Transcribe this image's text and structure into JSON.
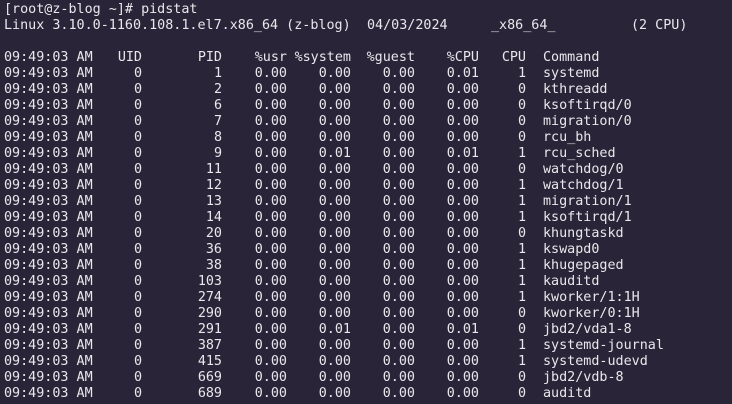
{
  "terminal": {
    "prompt": "[root@z-blog ~]# ",
    "command": "pidstat",
    "sysinfo": {
      "kernel": "Linux 3.10.0-1160.108.1.el7.x86_64 (z-blog)",
      "date": "04/03/2024",
      "arch": "_x86_64_",
      "cpus": "(2 CPU)"
    },
    "headers": [
      "09:49:03 AM",
      "UID",
      "PID",
      "%usr",
      "%system",
      "%guest",
      "%CPU",
      "CPU",
      "Command"
    ],
    "rows": [
      [
        "09:49:03 AM",
        "0",
        "1",
        "0.00",
        "0.00",
        "0.00",
        "0.01",
        "1",
        "systemd"
      ],
      [
        "09:49:03 AM",
        "0",
        "2",
        "0.00",
        "0.00",
        "0.00",
        "0.00",
        "0",
        "kthreadd"
      ],
      [
        "09:49:03 AM",
        "0",
        "6",
        "0.00",
        "0.00",
        "0.00",
        "0.00",
        "0",
        "ksoftirqd/0"
      ],
      [
        "09:49:03 AM",
        "0",
        "7",
        "0.00",
        "0.00",
        "0.00",
        "0.00",
        "0",
        "migration/0"
      ],
      [
        "09:49:03 AM",
        "0",
        "8",
        "0.00",
        "0.00",
        "0.00",
        "0.00",
        "0",
        "rcu_bh"
      ],
      [
        "09:49:03 AM",
        "0",
        "9",
        "0.00",
        "0.01",
        "0.00",
        "0.01",
        "1",
        "rcu_sched"
      ],
      [
        "09:49:03 AM",
        "0",
        "11",
        "0.00",
        "0.00",
        "0.00",
        "0.00",
        "0",
        "watchdog/0"
      ],
      [
        "09:49:03 AM",
        "0",
        "12",
        "0.00",
        "0.00",
        "0.00",
        "0.00",
        "1",
        "watchdog/1"
      ],
      [
        "09:49:03 AM",
        "0",
        "13",
        "0.00",
        "0.00",
        "0.00",
        "0.00",
        "1",
        "migration/1"
      ],
      [
        "09:49:03 AM",
        "0",
        "14",
        "0.00",
        "0.00",
        "0.00",
        "0.00",
        "1",
        "ksoftirqd/1"
      ],
      [
        "09:49:03 AM",
        "0",
        "20",
        "0.00",
        "0.00",
        "0.00",
        "0.00",
        "0",
        "khungtaskd"
      ],
      [
        "09:49:03 AM",
        "0",
        "36",
        "0.00",
        "0.00",
        "0.00",
        "0.00",
        "1",
        "kswapd0"
      ],
      [
        "09:49:03 AM",
        "0",
        "38",
        "0.00",
        "0.00",
        "0.00",
        "0.00",
        "1",
        "khugepaged"
      ],
      [
        "09:49:03 AM",
        "0",
        "103",
        "0.00",
        "0.00",
        "0.00",
        "0.00",
        "1",
        "kauditd"
      ],
      [
        "09:49:03 AM",
        "0",
        "274",
        "0.00",
        "0.00",
        "0.00",
        "0.00",
        "1",
        "kworker/1:1H"
      ],
      [
        "09:49:03 AM",
        "0",
        "290",
        "0.00",
        "0.00",
        "0.00",
        "0.00",
        "0",
        "kworker/0:1H"
      ],
      [
        "09:49:03 AM",
        "0",
        "291",
        "0.00",
        "0.01",
        "0.00",
        "0.01",
        "0",
        "jbd2/vda1-8"
      ],
      [
        "09:49:03 AM",
        "0",
        "387",
        "0.00",
        "0.00",
        "0.00",
        "0.00",
        "1",
        "systemd-journal"
      ],
      [
        "09:49:03 AM",
        "0",
        "415",
        "0.00",
        "0.00",
        "0.00",
        "0.00",
        "1",
        "systemd-udevd"
      ],
      [
        "09:49:03 AM",
        "0",
        "669",
        "0.00",
        "0.00",
        "0.00",
        "0.00",
        "0",
        "jbd2/vdb-8"
      ],
      [
        "09:49:03 AM",
        "0",
        "689",
        "0.00",
        "0.00",
        "0.00",
        "0.00",
        "0",
        "auditd"
      ]
    ]
  },
  "colors": {
    "background": "#2a2438",
    "foreground": "#e8e8ec"
  }
}
